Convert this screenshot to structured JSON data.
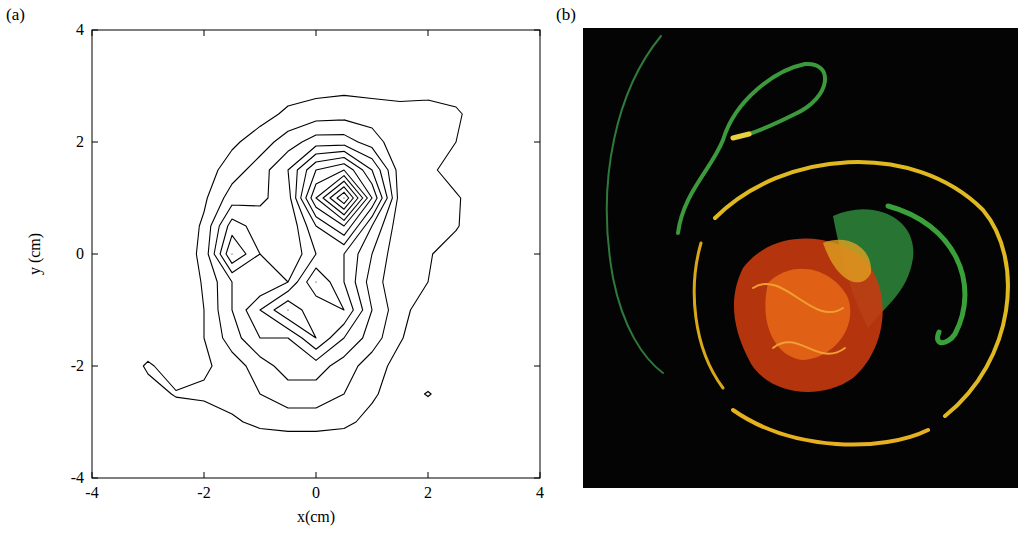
{
  "chart_data": {
    "type": "contour",
    "panel_label": "(a)",
    "xlabel": "x(cm)",
    "ylabel": "y (cm)",
    "xlim": [
      -4,
      4
    ],
    "ylim": [
      -4,
      4
    ],
    "xticks": [
      -4,
      -2,
      0,
      2,
      4
    ],
    "yticks": [
      -4,
      -2,
      0,
      2,
      4
    ],
    "grid": false,
    "color": "#000000",
    "x": [
      -4,
      -3.5,
      -3,
      -2.5,
      -2,
      -1.5,
      -1,
      -0.5,
      0,
      0.5,
      1,
      1.5,
      2,
      2.5,
      3,
      3.5,
      4
    ],
    "y": [
      4,
      3.5,
      3,
      2.5,
      2,
      1.5,
      1,
      0.5,
      0,
      -0.5,
      -1,
      -1.5,
      -2,
      -2.5,
      -3,
      -3.5,
      -4
    ],
    "z": [
      [
        0,
        0,
        0,
        0,
        0,
        0,
        0,
        0,
        0,
        0,
        0,
        0,
        0,
        0,
        0,
        0,
        0
      ],
      [
        0,
        0,
        0,
        0,
        0,
        0,
        0,
        0,
        0,
        0,
        0,
        0,
        0,
        0,
        0,
        0,
        0
      ],
      [
        0,
        0,
        0,
        0,
        0,
        0,
        0.2,
        0.5,
        0.6,
        0.7,
        0.6,
        0.5,
        0.5,
        0.4,
        0,
        0,
        0
      ],
      [
        0,
        0,
        0,
        0,
        0,
        0.2,
        0.6,
        1.2,
        1.5,
        1.6,
        1.5,
        1.4,
        1.5,
        1.2,
        0.3,
        0,
        0
      ],
      [
        0,
        0,
        0,
        0,
        0.2,
        0.8,
        1.5,
        2.5,
        3.5,
        3.5,
        2.5,
        1.3,
        1.1,
        1.0,
        0.2,
        0,
        0
      ],
      [
        0,
        0,
        0,
        0,
        0.5,
        1.5,
        2.5,
        4,
        7,
        8,
        5,
        1.5,
        1.2,
        0.6,
        0.4,
        0,
        0
      ],
      [
        0,
        0,
        0,
        0,
        0.8,
        2.5,
        2.8,
        3.5,
        9,
        13,
        7,
        1.5,
        1.1,
        1.1,
        0.5,
        0,
        0
      ],
      [
        0,
        0,
        0,
        0,
        1.2,
        4.5,
        3.5,
        3,
        6,
        8,
        4,
        1.3,
        1.0,
        1.1,
        0.2,
        0,
        0
      ],
      [
        0,
        0,
        0,
        0.2,
        1.3,
        6,
        4,
        3,
        5,
        5,
        3,
        1.2,
        1.1,
        0.5,
        0,
        0,
        0
      ],
      [
        0,
        0,
        0,
        0.2,
        1.1,
        3,
        3,
        4,
        7,
        5,
        2.5,
        1.2,
        1.0,
        0.3,
        0,
        0,
        0
      ],
      [
        0,
        0,
        0,
        0.3,
        1.0,
        3,
        5,
        7,
        5,
        6,
        3,
        1.3,
        0.5,
        0,
        0,
        0,
        0
      ],
      [
        0,
        0,
        0,
        0.4,
        1.0,
        2.5,
        4,
        4,
        6,
        4,
        2.5,
        1.1,
        0.2,
        0,
        0,
        0,
        0
      ],
      [
        0,
        0,
        1.2,
        0.3,
        0.8,
        1.5,
        2.5,
        3.5,
        3.5,
        2.5,
        1.5,
        0.6,
        0,
        0.6,
        0,
        0,
        0
      ],
      [
        0,
        0,
        0.5,
        1.1,
        1.2,
        1.5,
        2,
        2.5,
        2.5,
        2,
        1.2,
        0.3,
        1.1,
        0.2,
        0,
        0,
        0
      ],
      [
        0,
        0,
        0,
        0.2,
        0.4,
        0.8,
        1.3,
        1.5,
        1.5,
        1.3,
        0.6,
        0,
        0,
        0,
        0,
        0,
        0
      ],
      [
        0,
        0,
        0,
        0,
        0,
        0,
        0,
        0,
        0,
        0,
        0,
        0,
        0,
        0,
        0,
        0,
        0
      ],
      [
        0,
        0,
        0,
        0,
        0,
        0,
        0,
        0,
        0,
        0,
        0,
        0,
        0,
        0,
        0,
        0,
        0
      ]
    ],
    "levels": [
      1,
      2,
      3,
      4,
      5,
      6,
      7,
      8,
      9,
      10,
      11,
      12,
      13
    ]
  },
  "photo": {
    "panel_label": "(b)"
  }
}
